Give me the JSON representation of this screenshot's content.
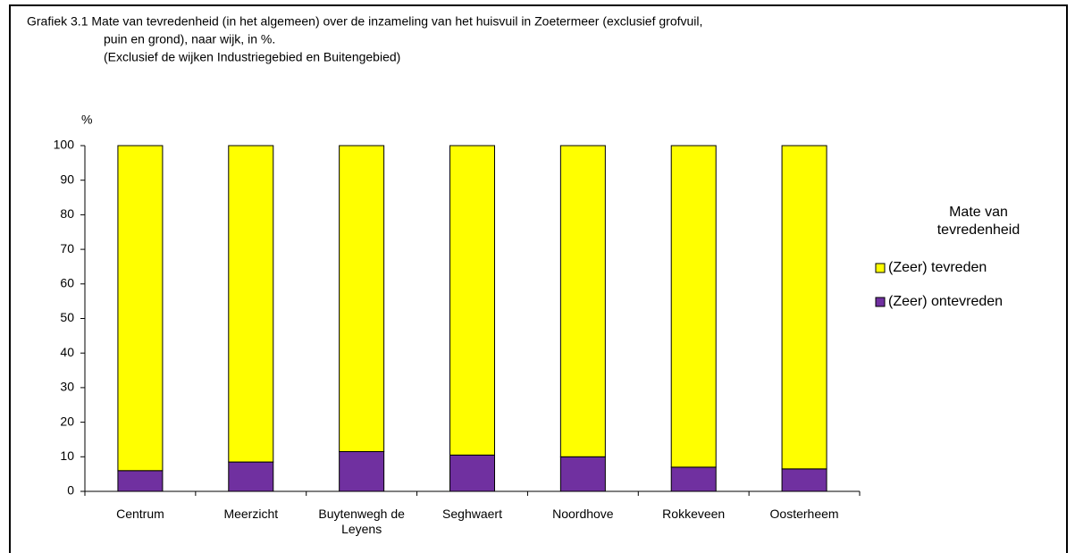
{
  "chart_data": {
    "type": "stacked_bar",
    "title": [
      "Grafiek 3.1  Mate van tevredenheid (in het algemeen) over de inzameling van het huisvuil in Zoetermeer (exclusief grofvuil,",
      "puin en grond), naar wijk, in %.",
      "(Exclusief de wijken Industriegebied en Buitengebied)"
    ],
    "y_label": "%",
    "legend_title": "Mate van tevredenheid",
    "categories": [
      "Centrum",
      "Meerzicht",
      "Buytenwegh de Leyens",
      "Seghwaert",
      "Noordhove",
      "Rokkeveen",
      "Oosterheem"
    ],
    "series": [
      {
        "name": "(Zeer) ontevreden",
        "color": "#7030a0",
        "values": [
          6,
          8.5,
          11.5,
          10.5,
          10,
          7,
          6.5
        ]
      },
      {
        "name": "(Zeer) tevreden",
        "color": "#ffff00",
        "values": [
          94,
          91.5,
          88.5,
          89.5,
          90,
          93,
          93.5
        ]
      }
    ],
    "ylim": [
      0,
      100
    ],
    "yticks": [
      0,
      10,
      20,
      30,
      40,
      50,
      60,
      70,
      80,
      90,
      100
    ],
    "grid": false,
    "legend": "right"
  }
}
